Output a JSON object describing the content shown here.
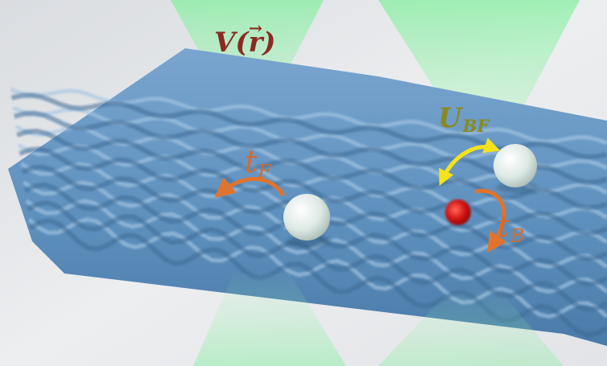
{
  "labels": {
    "potential_symbol": "V(",
    "potential_vector": "r",
    "potential_close": ")",
    "fermion_hop_symbol": "t",
    "fermion_hop_subscript": "F",
    "interaction_symbol": "U",
    "interaction_subscript": "BF",
    "boson_hop_symbol": "t",
    "boson_hop_subscript": "B"
  },
  "colors": {
    "potential_label": "#8b2a22",
    "fermion_label": "#d86a2a",
    "interaction_label": "#8a8a1c",
    "boson_label": "#d86a2a",
    "lattice": "#5d8fbd",
    "laser_beam": "#7df09a",
    "fermion_arrow": "#e0742e",
    "interaction_arrow": "#f5e21a",
    "boson_arrow": "#e0742e",
    "fermion_particle": "#eef5f2",
    "boson_particle": "#d41414",
    "background": "#e7e9ec"
  },
  "icons": {
    "fermion_particle": "white-sphere-icon",
    "second_particle": "white-sphere-icon",
    "boson_particle": "red-sphere-icon",
    "fermion_arrow": "curved-arrow-icon",
    "interaction_arrow": "double-headed-curved-arrow-icon",
    "boson_arrow": "curved-arrow-icon"
  }
}
